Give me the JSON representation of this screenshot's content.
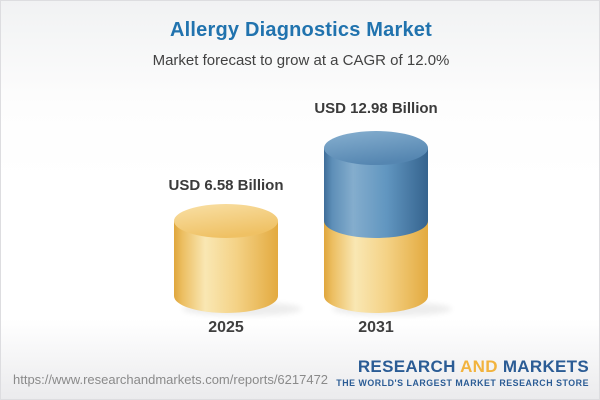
{
  "header": {
    "title": "Allergy Diagnostics Market",
    "subtitle": "Market forecast to grow at a CAGR of 12.0%"
  },
  "chart_data": {
    "type": "bar",
    "subtype": "3d-cylinder",
    "title": "Allergy Diagnostics Market",
    "subtitle": "Market forecast to grow at a CAGR of 12.0%",
    "categories": [
      "2025",
      "2031"
    ],
    "values": [
      6.58,
      12.98
    ],
    "value_labels": [
      "USD 6.58 Billion",
      "USD 12.98 Billion"
    ],
    "unit": "USD Billion",
    "cagr_percent": 12.0,
    "stacking": "2031 cylinder shows the 2025 base value in gold with the growth increment stacked in blue",
    "legend": "none",
    "grid": false,
    "colors": {
      "base_segment_gold": "#F2C96F",
      "growth_segment_blue": "#5589B4"
    }
  },
  "footer": {
    "url": "https://www.researchandmarkets.com/reports/6217472",
    "logo": {
      "word1": "RESEARCH",
      "word2": "AND",
      "word3": "MARKETS",
      "tagline": "THE WORLD'S LARGEST MARKET RESEARCH STORE"
    }
  },
  "colors": {
    "accent_blue": "#2173AE",
    "logo_blue": "#2B5C95",
    "logo_gold": "#F2B33D",
    "text_dark": "#3B3B3B",
    "url_gray": "#8A8A8A"
  }
}
